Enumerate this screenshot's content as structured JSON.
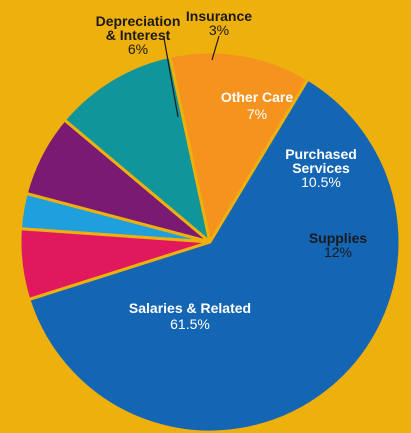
{
  "background_color": "#EEB00D",
  "chart_data": {
    "type": "pie",
    "title": "",
    "start_angle_deg": 274,
    "direction": "clockwise",
    "slices": [
      {
        "label": [
          "Insurance"
        ],
        "value_label": "3%",
        "value": 3,
        "color": "#1FA0DC",
        "label_color": "#1A1A1A"
      },
      {
        "label": [
          "Other Care"
        ],
        "value_label": "7%",
        "value": 7,
        "color": "#7A1A72",
        "label_color": "#FFFFFF"
      },
      {
        "label": [
          "Purchased",
          "Services"
        ],
        "value_label": "10.5%",
        "value": 10.5,
        "color": "#10969A",
        "label_color": "#FFFFFF"
      },
      {
        "label": [
          "Supplies"
        ],
        "value_label": "12%",
        "value": 12,
        "color": "#F6931F",
        "label_color": "#1A1A1A"
      },
      {
        "label": [
          "Salaries & Related"
        ],
        "value_label": "61.5%",
        "value": 61.5,
        "color": "#1466B4",
        "label_color": "#FFFFFF"
      },
      {
        "label": [
          "Depreciation",
          "& Interest"
        ],
        "value_label": "6%",
        "value": 6,
        "color": "#E0185E",
        "label_color": "#1A1A1A"
      }
    ]
  }
}
